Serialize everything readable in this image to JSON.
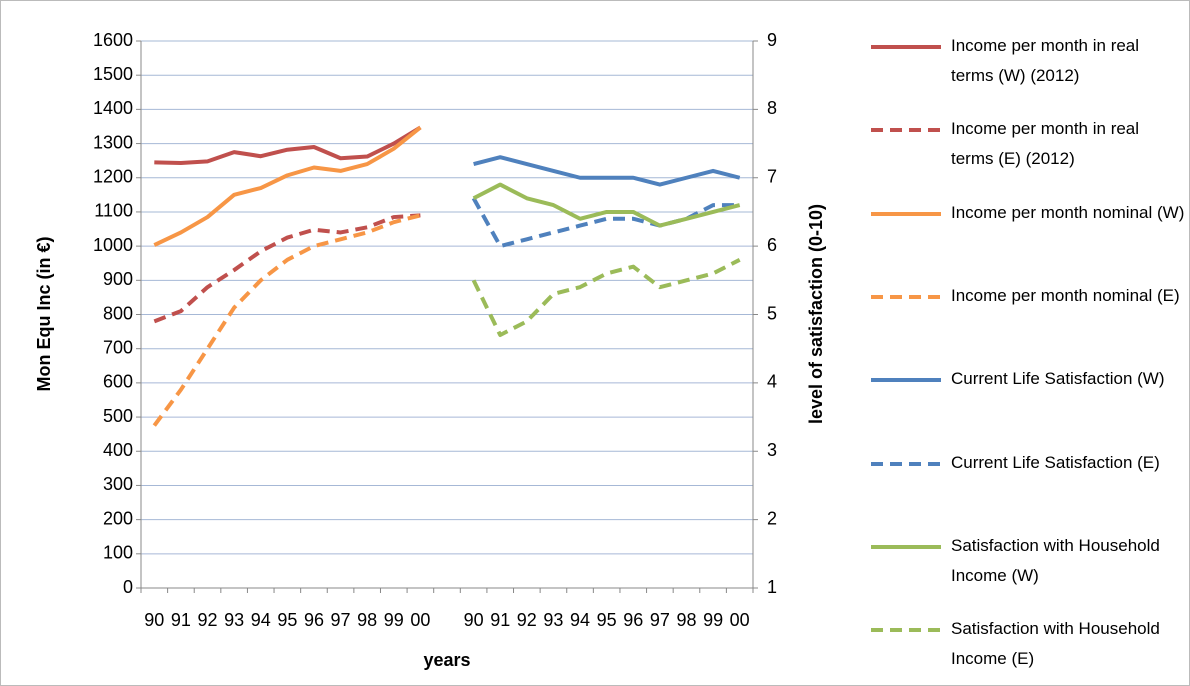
{
  "chart_data": {
    "type": "line",
    "xlabel": "years",
    "ylabel": "Mon Equ Inc (in €)",
    "y2label": "level of satisfaction (0-10)",
    "categories": [
      "90",
      "91",
      "92",
      "93",
      "94",
      "95",
      "96",
      "97",
      "98",
      "99",
      "00",
      null,
      "90",
      "91",
      "92",
      "93",
      "94",
      "95",
      "96",
      "97",
      "98",
      "99",
      "00"
    ],
    "ylim": [
      0,
      1600
    ],
    "yticks": [
      0,
      100,
      200,
      300,
      400,
      500,
      600,
      700,
      800,
      900,
      1000,
      1100,
      1200,
      1300,
      1400,
      1500,
      1600
    ],
    "y2lim": [
      1,
      9
    ],
    "y2ticks": [
      1,
      2,
      3,
      4,
      5,
      6,
      7,
      8,
      9
    ],
    "grid": true,
    "legend": "right",
    "series": [
      {
        "name": "Income per month in real terms (W) (2012)",
        "color": "#C0504D",
        "dashed": false,
        "values": [
          1245,
          1243,
          1248,
          1275,
          1263,
          1282,
          1290,
          1257,
          1262,
          1300,
          1347,
          null,
          null,
          null,
          null,
          null,
          null,
          null,
          null,
          null,
          null,
          null,
          null
        ]
      },
      {
        "name": "Income per month in real terms (E) (2012)",
        "color": "#C0504D",
        "dashed": true,
        "values": [
          780,
          810,
          880,
          930,
          985,
          1025,
          1048,
          1040,
          1055,
          1085,
          1090,
          null,
          null,
          null,
          null,
          null,
          null,
          null,
          null,
          null,
          null,
          null,
          null
        ]
      },
      {
        "name": "Income per month nominal (W)",
        "color": "#F79646",
        "dashed": false,
        "values": [
          1003,
          1040,
          1085,
          1150,
          1170,
          1207,
          1230,
          1220,
          1240,
          1285,
          1347,
          null,
          null,
          null,
          null,
          null,
          null,
          null,
          null,
          null,
          null,
          null,
          null
        ]
      },
      {
        "name": "Income per month nominal (E)",
        "color": "#F79646",
        "dashed": true,
        "values": [
          475,
          580,
          700,
          820,
          900,
          960,
          1000,
          1020,
          1040,
          1070,
          1090,
          null,
          null,
          null,
          null,
          null,
          null,
          null,
          null,
          null,
          null,
          null,
          null
        ]
      },
      {
        "name": "Current Life Satisfaction (W)",
        "color": "#4F81BD",
        "dashed": false,
        "axis": "y2",
        "values": [
          null,
          null,
          null,
          null,
          null,
          null,
          null,
          null,
          null,
          null,
          null,
          null,
          7.2,
          7.3,
          7.2,
          7.1,
          7.0,
          7.0,
          7.0,
          6.9,
          7.0,
          7.1,
          7.0
        ]
      },
      {
        "name": "Current Life Satisfaction (E)",
        "color": "#4F81BD",
        "dashed": true,
        "axis": "y2",
        "values": [
          null,
          null,
          null,
          null,
          null,
          null,
          null,
          null,
          null,
          null,
          null,
          null,
          6.7,
          6.0,
          6.1,
          6.2,
          6.3,
          6.4,
          6.4,
          6.3,
          6.4,
          6.6,
          6.6
        ]
      },
      {
        "name": "Satisfaction with Household Income (W)",
        "color": "#9BBB59",
        "dashed": false,
        "axis": "y2",
        "values": [
          null,
          null,
          null,
          null,
          null,
          null,
          null,
          null,
          null,
          null,
          null,
          null,
          6.7,
          6.9,
          6.7,
          6.6,
          6.4,
          6.5,
          6.5,
          6.3,
          6.4,
          6.5,
          6.6
        ]
      },
      {
        "name": "Satisfaction with Household Income (E)",
        "color": "#9BBB59",
        "dashed": true,
        "axis": "y2",
        "values": [
          null,
          null,
          null,
          null,
          null,
          null,
          null,
          null,
          null,
          null,
          null,
          null,
          5.5,
          4.7,
          4.9,
          5.3,
          5.4,
          5.6,
          5.7,
          5.4,
          5.5,
          5.6,
          5.8
        ]
      }
    ]
  }
}
